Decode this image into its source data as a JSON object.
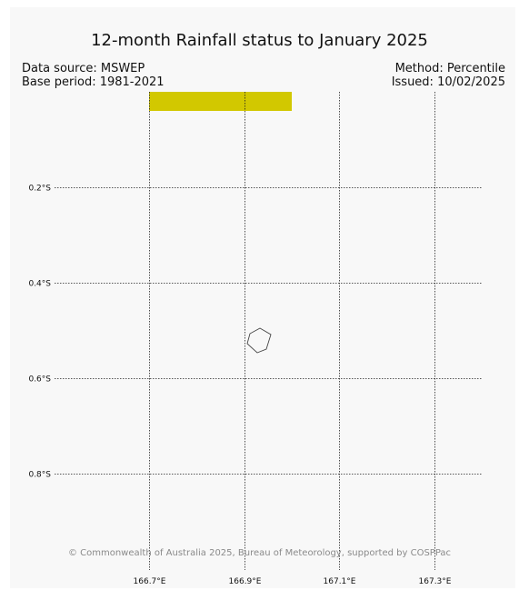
{
  "title": "12-month Rainfall status to January 2025",
  "meta": {
    "data_source": "Data source: MSWEP",
    "base_period": "Base period: 1981-2021",
    "method": "Method: Percentile",
    "issued": "Issued: 10/02/2025"
  },
  "credit": "© Commonwealth of Australia 2025, Bureau of Meteorology, supported by COSPPac",
  "map": {
    "lat_labels": [
      "0.2°S",
      "0.4°S",
      "0.6°S",
      "0.8°S"
    ],
    "lon_labels": [
      "166.7°E",
      "166.9°E",
      "167.1°E",
      "167.3°E"
    ],
    "colors": {
      "rain_cell": "#d2c800",
      "grid": "#222222",
      "background": "#f8f8f8"
    }
  }
}
